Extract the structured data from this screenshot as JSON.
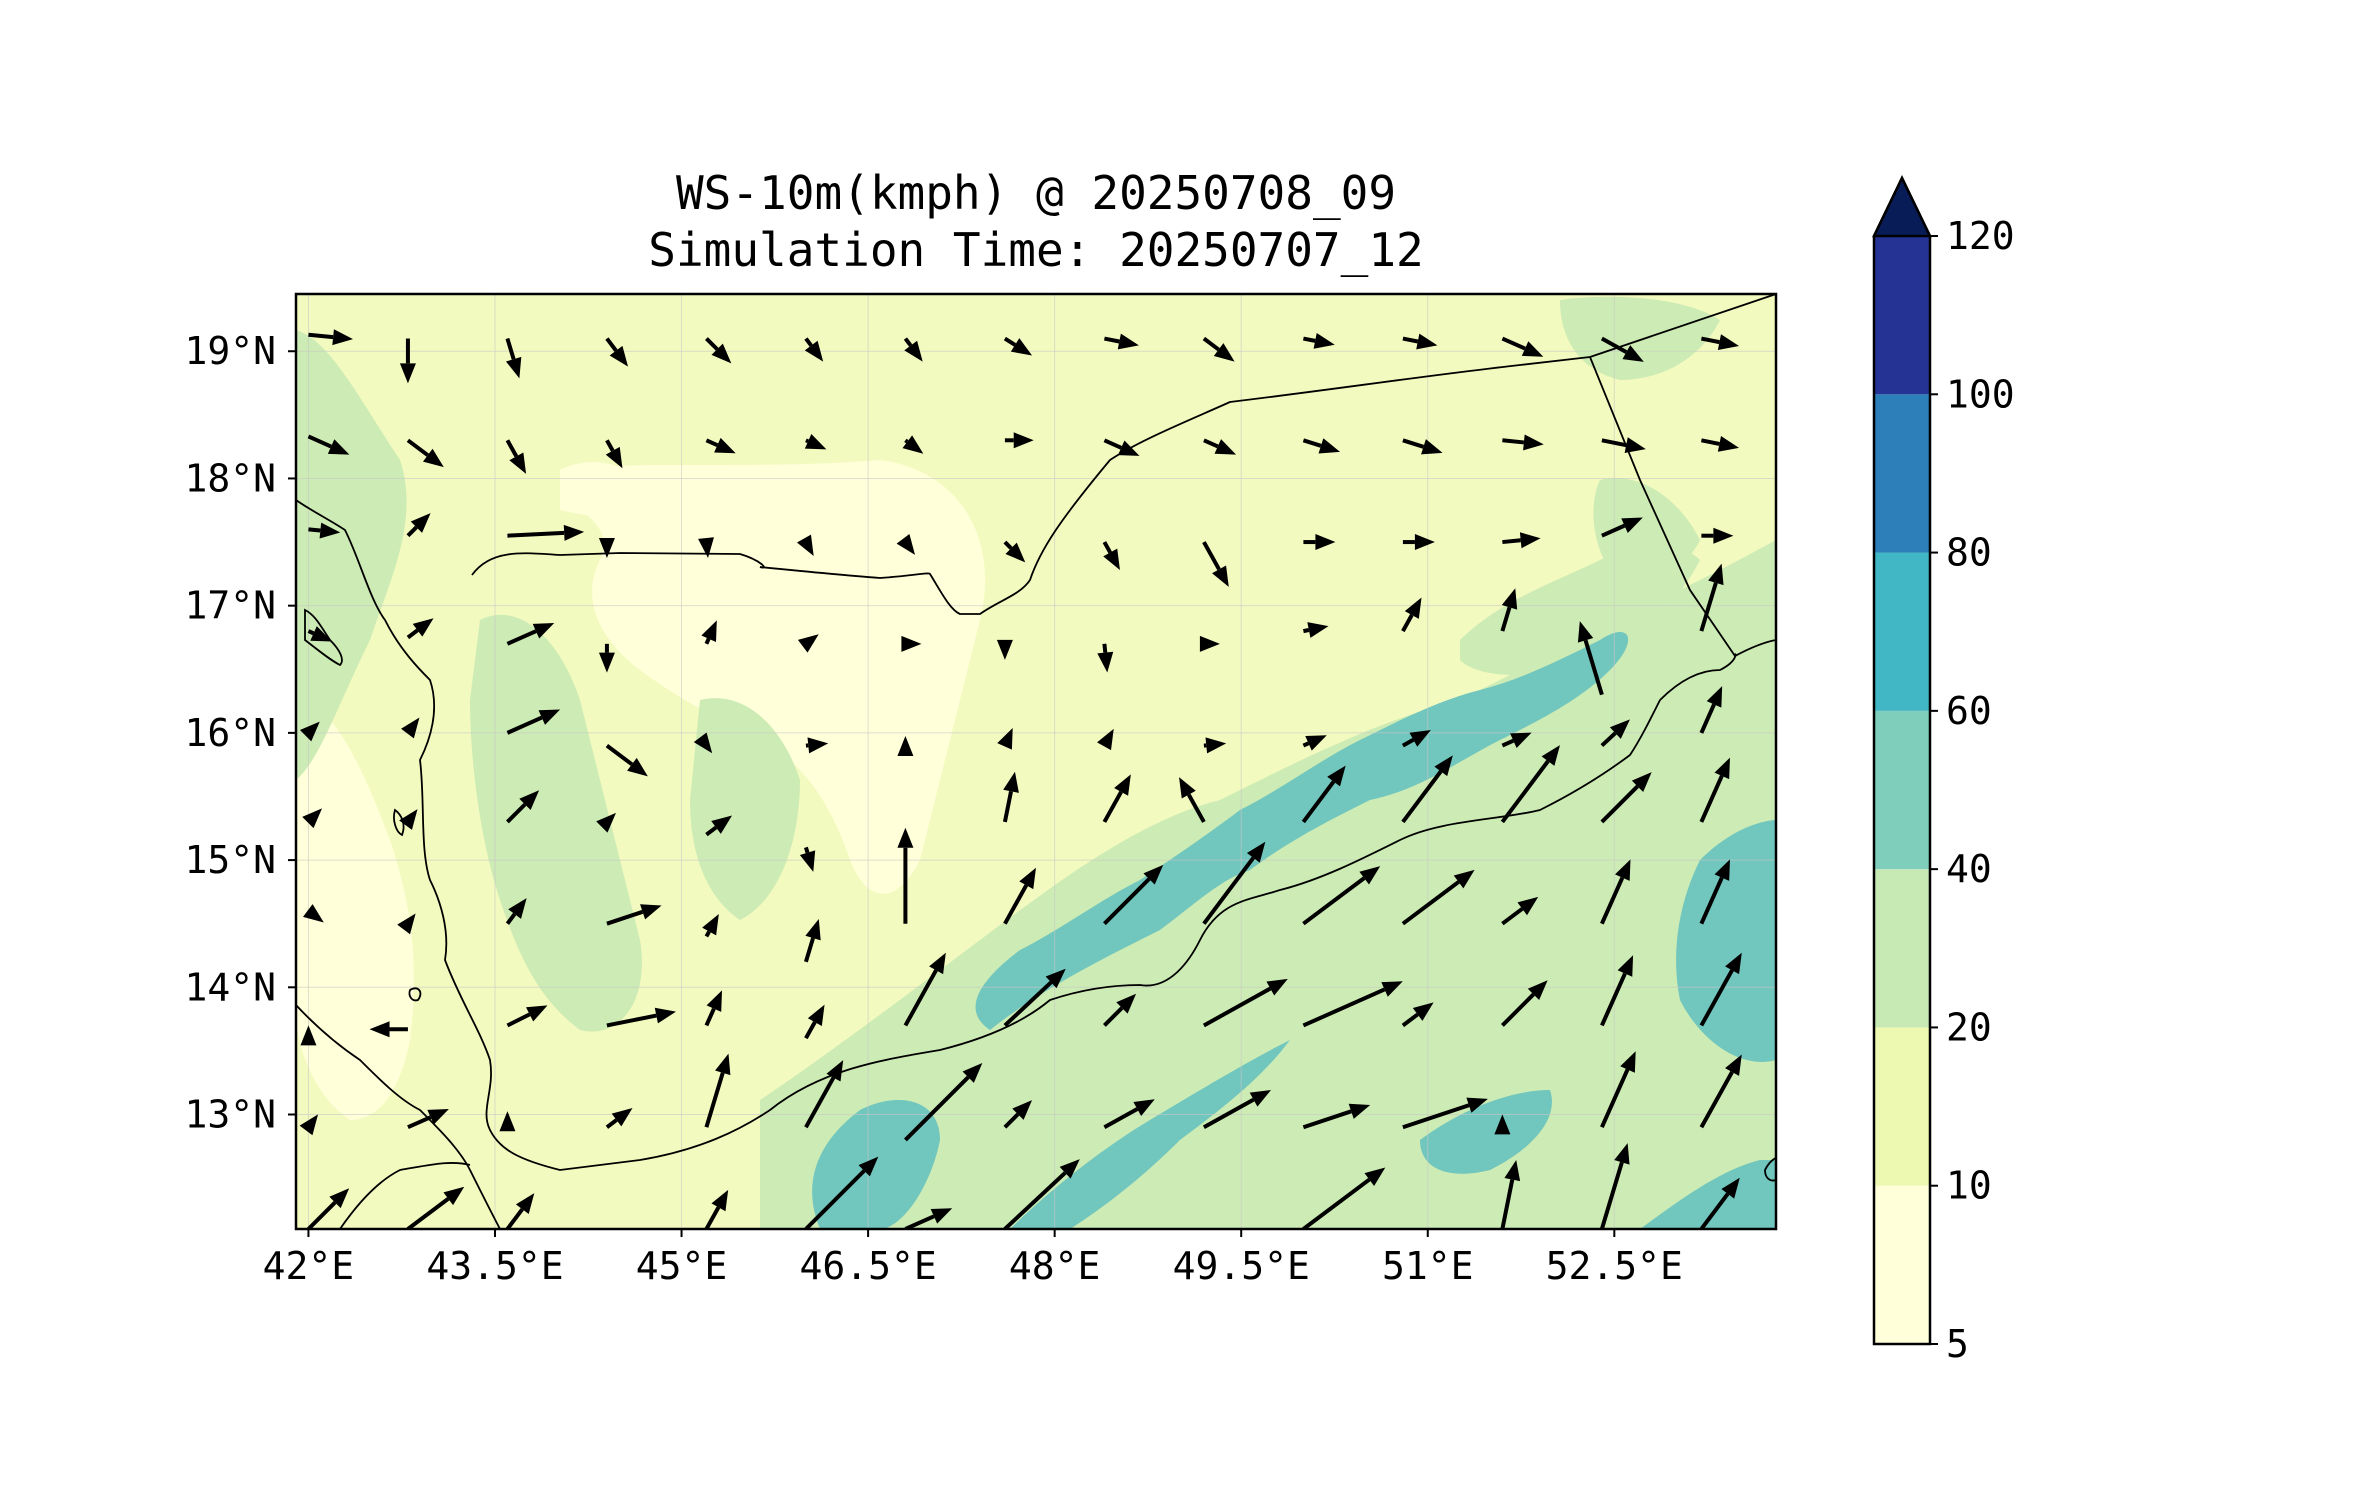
{
  "title": {
    "line1": "WS-10m(kmph) @ 20250708_09",
    "line2": "Simulation Time: 20250707_12"
  },
  "map": {
    "lon_range": [
      41.9,
      53.8
    ],
    "lat_range": [
      12.1,
      19.45
    ],
    "lon_ticks": [
      {
        "value": 42.0,
        "label": "42°E"
      },
      {
        "value": 43.5,
        "label": "43.5°E"
      },
      {
        "value": 45.0,
        "label": "45°E"
      },
      {
        "value": 46.5,
        "label": "46.5°E"
      },
      {
        "value": 48.0,
        "label": "48°E"
      },
      {
        "value": 49.5,
        "label": "49.5°E"
      },
      {
        "value": 51.0,
        "label": "51°E"
      },
      {
        "value": 52.5,
        "label": "52.5°E"
      }
    ],
    "lat_ticks": [
      {
        "value": 19,
        "label": "19°N"
      },
      {
        "value": 18,
        "label": "18°N"
      },
      {
        "value": 17,
        "label": "17°N"
      },
      {
        "value": 16,
        "label": "16°N"
      },
      {
        "value": 15,
        "label": "15°N"
      },
      {
        "value": 14,
        "label": "14°N"
      },
      {
        "value": 13,
        "label": "13°N"
      }
    ],
    "grid": true,
    "base_color": "#f3fabf",
    "speed_bands": [
      {
        "min": 5,
        "max": 10,
        "color": "#ffffd9"
      },
      {
        "min": 10,
        "max": 20,
        "color": "#f3fabf"
      },
      {
        "min": 20,
        "max": 40,
        "color": "#cdebb4"
      },
      {
        "min": 40,
        "max": 60,
        "color": "#71c6be"
      }
    ],
    "wind_arrows": [
      {
        "lon": 42.0,
        "lat": 19.13,
        "u": 1,
        "v": -0.1,
        "s": 14
      },
      {
        "lon": 42.8,
        "lat": 19.1,
        "u": 0,
        "v": -1,
        "s": 14
      },
      {
        "lon": 43.6,
        "lat": 19.1,
        "u": 0.3,
        "v": -1,
        "s": 13
      },
      {
        "lon": 44.4,
        "lat": 19.1,
        "u": 0.6,
        "v": -0.8,
        "s": 11
      },
      {
        "lon": 45.2,
        "lat": 19.1,
        "u": 0.7,
        "v": -0.7,
        "s": 11
      },
      {
        "lon": 46.0,
        "lat": 19.1,
        "u": 0.6,
        "v": -0.8,
        "s": 9
      },
      {
        "lon": 46.8,
        "lat": 19.1,
        "u": 0.6,
        "v": -0.8,
        "s": 9
      },
      {
        "lon": 47.6,
        "lat": 19.1,
        "u": 0.8,
        "v": -0.5,
        "s": 10
      },
      {
        "lon": 48.4,
        "lat": 19.1,
        "u": 1,
        "v": -0.2,
        "s": 11
      },
      {
        "lon": 49.2,
        "lat": 19.1,
        "u": 0.8,
        "v": -0.6,
        "s": 12
      },
      {
        "lon": 50.0,
        "lat": 19.1,
        "u": 1,
        "v": -0.2,
        "s": 10
      },
      {
        "lon": 50.8,
        "lat": 19.1,
        "u": 1,
        "v": -0.2,
        "s": 11
      },
      {
        "lon": 51.6,
        "lat": 19.1,
        "u": 0.9,
        "v": -0.4,
        "s": 14
      },
      {
        "lon": 52.4,
        "lat": 19.1,
        "u": 0.9,
        "v": -0.5,
        "s": 15
      },
      {
        "lon": 53.2,
        "lat": 19.1,
        "u": 1,
        "v": -0.2,
        "s": 12
      },
      {
        "lon": 42.0,
        "lat": 18.33,
        "u": 0.9,
        "v": -0.4,
        "s": 14
      },
      {
        "lon": 42.8,
        "lat": 18.3,
        "u": 0.8,
        "v": -0.6,
        "s": 14
      },
      {
        "lon": 43.6,
        "lat": 18.3,
        "u": 0.5,
        "v": -0.9,
        "s": 12
      },
      {
        "lon": 44.4,
        "lat": 18.3,
        "u": 0.5,
        "v": -0.9,
        "s": 10
      },
      {
        "lon": 45.2,
        "lat": 18.3,
        "u": 0.9,
        "v": -0.4,
        "s": 10
      },
      {
        "lon": 46.0,
        "lat": 18.3,
        "u": 0.9,
        "v": -0.4,
        "s": 7
      },
      {
        "lon": 46.8,
        "lat": 18.3,
        "u": 0.8,
        "v": -0.6,
        "s": 7
      },
      {
        "lon": 47.6,
        "lat": 18.3,
        "u": 1,
        "v": 0,
        "s": 9
      },
      {
        "lon": 48.4,
        "lat": 18.3,
        "u": 0.9,
        "v": -0.4,
        "s": 12
      },
      {
        "lon": 49.2,
        "lat": 18.3,
        "u": 0.9,
        "v": -0.4,
        "s": 11
      },
      {
        "lon": 50.0,
        "lat": 18.3,
        "u": 0.95,
        "v": -0.3,
        "s": 12
      },
      {
        "lon": 50.8,
        "lat": 18.3,
        "u": 0.95,
        "v": -0.3,
        "s": 13
      },
      {
        "lon": 51.6,
        "lat": 18.3,
        "u": 1,
        "v": -0.1,
        "s": 13
      },
      {
        "lon": 52.4,
        "lat": 18.3,
        "u": 1,
        "v": -0.2,
        "s": 14
      },
      {
        "lon": 53.2,
        "lat": 18.3,
        "u": 1,
        "v": -0.2,
        "s": 12
      },
      {
        "lon": 42.0,
        "lat": 17.6,
        "u": 1,
        "v": -0.1,
        "s": 10
      },
      {
        "lon": 42.8,
        "lat": 17.55,
        "u": 0.7,
        "v": 0.7,
        "s": 10
      },
      {
        "lon": 43.6,
        "lat": 17.55,
        "u": 1,
        "v": 0.05,
        "s": 24
      },
      {
        "lon": 44.4,
        "lat": 17.5,
        "u": 0,
        "v": -1,
        "s": 5
      },
      {
        "lon": 45.2,
        "lat": 17.5,
        "u": 0.1,
        "v": -1,
        "s": 5
      },
      {
        "lon": 46.0,
        "lat": 17.5,
        "u": 0.5,
        "v": -0.9,
        "s": 5
      },
      {
        "lon": 46.8,
        "lat": 17.5,
        "u": 0.6,
        "v": -0.8,
        "s": 5
      },
      {
        "lon": 47.6,
        "lat": 17.5,
        "u": 0.7,
        "v": -0.7,
        "s": 9
      },
      {
        "lon": 48.4,
        "lat": 17.5,
        "u": 0.5,
        "v": -0.9,
        "s": 10
      },
      {
        "lon": 49.2,
        "lat": 17.5,
        "u": 0.5,
        "v": -0.9,
        "s": 16
      },
      {
        "lon": 50.0,
        "lat": 17.5,
        "u": 1,
        "v": 0,
        "s": 10
      },
      {
        "lon": 50.8,
        "lat": 17.5,
        "u": 1,
        "v": 0,
        "s": 10
      },
      {
        "lon": 51.6,
        "lat": 17.5,
        "u": 1,
        "v": 0.1,
        "s": 12
      },
      {
        "lon": 52.4,
        "lat": 17.55,
        "u": 0.9,
        "v": 0.4,
        "s": 14
      },
      {
        "lon": 53.2,
        "lat": 17.55,
        "u": 1,
        "v": 0,
        "s": 10
      },
      {
        "lon": 42.0,
        "lat": 16.8,
        "u": 0.9,
        "v": -0.4,
        "s": 8
      },
      {
        "lon": 42.8,
        "lat": 16.75,
        "u": 0.8,
        "v": 0.6,
        "s": 10
      },
      {
        "lon": 43.6,
        "lat": 16.7,
        "u": 0.9,
        "v": 0.4,
        "s": 16
      },
      {
        "lon": 44.4,
        "lat": 16.7,
        "u": 0,
        "v": -1,
        "s": 9
      },
      {
        "lon": 45.2,
        "lat": 16.7,
        "u": 0.4,
        "v": 0.9,
        "s": 8
      },
      {
        "lon": 46.0,
        "lat": 16.7,
        "u": 0.8,
        "v": 0.6,
        "s": 5
      },
      {
        "lon": 46.8,
        "lat": 16.7,
        "u": 1,
        "v": 0,
        "s": 5
      },
      {
        "lon": 47.6,
        "lat": 16.7,
        "u": 0,
        "v": -1,
        "s": 5
      },
      {
        "lon": 48.4,
        "lat": 16.7,
        "u": 0.1,
        "v": -1,
        "s": 9
      },
      {
        "lon": 49.2,
        "lat": 16.7,
        "u": 1,
        "v": 0,
        "s": 5
      },
      {
        "lon": 50.0,
        "lat": 16.8,
        "u": 1,
        "v": 0.2,
        "s": 8
      },
      {
        "lon": 50.8,
        "lat": 16.8,
        "u": 0.5,
        "v": 0.9,
        "s": 12
      },
      {
        "lon": 51.6,
        "lat": 16.8,
        "u": 0.3,
        "v": 1,
        "s": 14
      },
      {
        "lon": 52.4,
        "lat": 16.3,
        "u": -0.3,
        "v": 1,
        "s": 24
      },
      {
        "lon": 53.2,
        "lat": 16.8,
        "u": 0.3,
        "v": 1,
        "s": 22
      },
      {
        "lon": 42.0,
        "lat": 16.0,
        "u": 0.6,
        "v": 0.6,
        "s": 5
      },
      {
        "lon": 42.8,
        "lat": 16.0,
        "u": 0.6,
        "v": 0.8,
        "s": 6
      },
      {
        "lon": 43.6,
        "lat": 16.0,
        "u": 0.9,
        "v": 0.4,
        "s": 18
      },
      {
        "lon": 44.4,
        "lat": 15.9,
        "u": 0.8,
        "v": -0.6,
        "s": 16
      },
      {
        "lon": 45.2,
        "lat": 15.9,
        "u": 0.6,
        "v": -0.8,
        "s": 3
      },
      {
        "lon": 46.0,
        "lat": 15.9,
        "u": 1,
        "v": 0.1,
        "s": 7
      },
      {
        "lon": 46.8,
        "lat": 15.9,
        "u": 0,
        "v": 1,
        "s": 3
      },
      {
        "lon": 47.6,
        "lat": 15.9,
        "u": 0.4,
        "v": 0.9,
        "s": 6
      },
      {
        "lon": 48.4,
        "lat": 15.9,
        "u": 0.5,
        "v": 0.9,
        "s": 6
      },
      {
        "lon": 49.2,
        "lat": 15.9,
        "u": 1,
        "v": 0.1,
        "s": 7
      },
      {
        "lon": 50.0,
        "lat": 15.9,
        "u": 0.9,
        "v": 0.4,
        "s": 8
      },
      {
        "lon": 50.8,
        "lat": 15.9,
        "u": 0.9,
        "v": 0.5,
        "s": 10
      },
      {
        "lon": 51.6,
        "lat": 15.9,
        "u": 0.9,
        "v": 0.4,
        "s": 10
      },
      {
        "lon": 52.4,
        "lat": 15.9,
        "u": 0.75,
        "v": 0.7,
        "s": 12
      },
      {
        "lon": 53.2,
        "lat": 16.0,
        "u": 0.4,
        "v": 0.9,
        "s": 16
      },
      {
        "lon": 42.0,
        "lat": 15.3,
        "u": 0.7,
        "v": 0.7,
        "s": 6
      },
      {
        "lon": 42.8,
        "lat": 15.3,
        "u": 0.6,
        "v": 0.8,
        "s": 5
      },
      {
        "lon": 43.6,
        "lat": 15.3,
        "u": 0.7,
        "v": 0.7,
        "s": 14
      },
      {
        "lon": 44.4,
        "lat": 15.3,
        "u": 0.7,
        "v": 0.7,
        "s": 4
      },
      {
        "lon": 45.2,
        "lat": 15.2,
        "u": 0.8,
        "v": 0.6,
        "s": 10
      },
      {
        "lon": 46.0,
        "lat": 15.1,
        "u": 0.3,
        "v": -1,
        "s": 8
      },
      {
        "lon": 46.8,
        "lat": 14.5,
        "u": 0,
        "v": 1,
        "s": 30
      },
      {
        "lon": 47.6,
        "lat": 15.3,
        "u": 0.2,
        "v": 1,
        "s": 16
      },
      {
        "lon": 48.4,
        "lat": 15.3,
        "u": 0.5,
        "v": 0.9,
        "s": 17
      },
      {
        "lon": 49.2,
        "lat": 15.3,
        "u": -0.5,
        "v": 0.9,
        "s": 16
      },
      {
        "lon": 50.0,
        "lat": 15.3,
        "u": 0.6,
        "v": 0.8,
        "s": 22
      },
      {
        "lon": 50.8,
        "lat": 15.3,
        "u": 0.6,
        "v": 0.8,
        "s": 26
      },
      {
        "lon": 51.6,
        "lat": 15.3,
        "u": 0.6,
        "v": 0.8,
        "s": 30
      },
      {
        "lon": 52.4,
        "lat": 15.3,
        "u": 0.7,
        "v": 0.7,
        "s": 22
      },
      {
        "lon": 53.2,
        "lat": 15.3,
        "u": 0.4,
        "v": 0.9,
        "s": 22
      },
      {
        "lon": 42.0,
        "lat": 14.6,
        "u": 0.8,
        "v": -0.6,
        "s": 6
      },
      {
        "lon": 42.8,
        "lat": 14.5,
        "u": 0.6,
        "v": 0.8,
        "s": 4
      },
      {
        "lon": 43.6,
        "lat": 14.5,
        "u": 0.6,
        "v": 0.8,
        "s": 10
      },
      {
        "lon": 44.4,
        "lat": 14.5,
        "u": 0.9,
        "v": 0.3,
        "s": 18
      },
      {
        "lon": 45.2,
        "lat": 14.4,
        "u": 0.5,
        "v": 0.9,
        "s": 8
      },
      {
        "lon": 46.0,
        "lat": 14.2,
        "u": 0.3,
        "v": 1,
        "s": 14
      },
      {
        "lon": 46.8,
        "lat": 13.7,
        "u": 0.5,
        "v": 0.9,
        "s": 26
      },
      {
        "lon": 47.6,
        "lat": 14.5,
        "u": 0.5,
        "v": 0.9,
        "s": 20
      },
      {
        "lon": 48.4,
        "lat": 14.5,
        "u": 0.7,
        "v": 0.7,
        "s": 26
      },
      {
        "lon": 49.2,
        "lat": 14.5,
        "u": 0.6,
        "v": 0.8,
        "s": 32
      },
      {
        "lon": 50.0,
        "lat": 14.5,
        "u": 0.8,
        "v": 0.6,
        "s": 30
      },
      {
        "lon": 50.8,
        "lat": 14.5,
        "u": 0.8,
        "v": 0.6,
        "s": 28
      },
      {
        "lon": 51.6,
        "lat": 14.5,
        "u": 0.8,
        "v": 0.6,
        "s": 14
      },
      {
        "lon": 52.4,
        "lat": 14.5,
        "u": 0.4,
        "v": 0.9,
        "s": 22
      },
      {
        "lon": 53.2,
        "lat": 14.5,
        "u": 0.4,
        "v": 0.9,
        "s": 22
      },
      {
        "lon": 42.0,
        "lat": 13.6,
        "u": 0,
        "v": 1,
        "s": 4
      },
      {
        "lon": 42.8,
        "lat": 13.67,
        "u": -1,
        "v": 0,
        "s": 12
      },
      {
        "lon": 43.6,
        "lat": 13.7,
        "u": 0.8,
        "v": 0.4,
        "s": 14
      },
      {
        "lon": 44.4,
        "lat": 13.7,
        "u": 1,
        "v": 0.2,
        "s": 22
      },
      {
        "lon": 45.2,
        "lat": 13.7,
        "u": 0.4,
        "v": 0.9,
        "s": 12
      },
      {
        "lon": 46.0,
        "lat": 13.6,
        "u": 0.5,
        "v": 0.9,
        "s": 12
      },
      {
        "lon": 46.8,
        "lat": 12.8,
        "u": 0.7,
        "v": 0.7,
        "s": 34
      },
      {
        "lon": 47.6,
        "lat": 13.7,
        "u": 0.75,
        "v": 0.7,
        "s": 26
      },
      {
        "lon": 48.4,
        "lat": 13.7,
        "u": 0.7,
        "v": 0.7,
        "s": 14
      },
      {
        "lon": 49.2,
        "lat": 13.7,
        "u": 0.9,
        "v": 0.5,
        "s": 30
      },
      {
        "lon": 50.0,
        "lat": 13.7,
        "u": 0.9,
        "v": 0.4,
        "s": 34
      },
      {
        "lon": 50.8,
        "lat": 13.7,
        "u": 0.8,
        "v": 0.6,
        "s": 12
      },
      {
        "lon": 51.6,
        "lat": 13.7,
        "u": 0.7,
        "v": 0.7,
        "s": 20
      },
      {
        "lon": 52.4,
        "lat": 13.7,
        "u": 0.4,
        "v": 0.9,
        "s": 24
      },
      {
        "lon": 53.2,
        "lat": 13.7,
        "u": 0.5,
        "v": 0.9,
        "s": 26
      },
      {
        "lon": 42.0,
        "lat": 12.9,
        "u": 0.6,
        "v": 0.8,
        "s": 5
      },
      {
        "lon": 42.8,
        "lat": 12.9,
        "u": 0.9,
        "v": 0.4,
        "s": 14
      },
      {
        "lon": 43.6,
        "lat": 12.9,
        "u": 0,
        "v": 1,
        "s": 5
      },
      {
        "lon": 44.4,
        "lat": 12.9,
        "u": 0.8,
        "v": 0.6,
        "s": 10
      },
      {
        "lon": 45.2,
        "lat": 12.9,
        "u": 0.3,
        "v": 1,
        "s": 24
      },
      {
        "lon": 46.0,
        "lat": 12.9,
        "u": 0.5,
        "v": 0.9,
        "s": 24
      },
      {
        "lon": 47.6,
        "lat": 12.9,
        "u": 0.7,
        "v": 0.7,
        "s": 12
      },
      {
        "lon": 48.4,
        "lat": 12.9,
        "u": 0.9,
        "v": 0.5,
        "s": 18
      },
      {
        "lon": 49.2,
        "lat": 12.9,
        "u": 0.9,
        "v": 0.5,
        "s": 24
      },
      {
        "lon": 50.0,
        "lat": 12.9,
        "u": 0.9,
        "v": 0.3,
        "s": 22
      },
      {
        "lon": 50.8,
        "lat": 12.9,
        "u": 0.9,
        "v": 0.3,
        "s": 28
      },
      {
        "lon": 51.6,
        "lat": 12.9,
        "u": 0,
        "v": 1,
        "s": 4
      },
      {
        "lon": 52.4,
        "lat": 12.9,
        "u": 0.4,
        "v": 0.9,
        "s": 26
      },
      {
        "lon": 53.2,
        "lat": 12.9,
        "u": 0.5,
        "v": 0.9,
        "s": 26
      },
      {
        "lon": 42.0,
        "lat": 12.1,
        "u": 0.7,
        "v": 0.7,
        "s": 18
      },
      {
        "lon": 42.8,
        "lat": 12.1,
        "u": 0.8,
        "v": 0.6,
        "s": 22
      },
      {
        "lon": 43.6,
        "lat": 12.1,
        "u": 0.6,
        "v": 0.8,
        "s": 14
      },
      {
        "lon": 45.2,
        "lat": 12.1,
        "u": 0.5,
        "v": 0.9,
        "s": 14
      },
      {
        "lon": 46.0,
        "lat": 12.1,
        "u": 0.7,
        "v": 0.7,
        "s": 32
      },
      {
        "lon": 46.8,
        "lat": 12.1,
        "u": 0.9,
        "v": 0.4,
        "s": 16
      },
      {
        "lon": 47.6,
        "lat": 12.1,
        "u": 0.75,
        "v": 0.7,
        "s": 32
      },
      {
        "lon": 50.0,
        "lat": 12.1,
        "u": 0.8,
        "v": 0.6,
        "s": 32
      },
      {
        "lon": 51.6,
        "lat": 12.1,
        "u": 0.2,
        "v": 1,
        "s": 22
      },
      {
        "lon": 52.4,
        "lat": 12.1,
        "u": 0.3,
        "v": 1,
        "s": 28
      },
      {
        "lon": 53.2,
        "lat": 12.1,
        "u": 0.6,
        "v": 0.8,
        "s": 20
      }
    ]
  },
  "colorbar": {
    "levels": [
      {
        "value": 5,
        "label": "5"
      },
      {
        "value": 10,
        "label": "10"
      },
      {
        "value": 20,
        "label": "20"
      },
      {
        "value": 40,
        "label": "40"
      },
      {
        "value": 60,
        "label": "60"
      },
      {
        "value": 80,
        "label": "80"
      },
      {
        "value": 100,
        "label": "100"
      },
      {
        "value": 120,
        "label": "120"
      }
    ],
    "colors": [
      "#ffffd9",
      "#edf8b1",
      "#c7e9b4",
      "#7fcdbb",
      "#41b6c4",
      "#2c7fb8",
      "#253494"
    ],
    "extend_color": "#081d58"
  }
}
